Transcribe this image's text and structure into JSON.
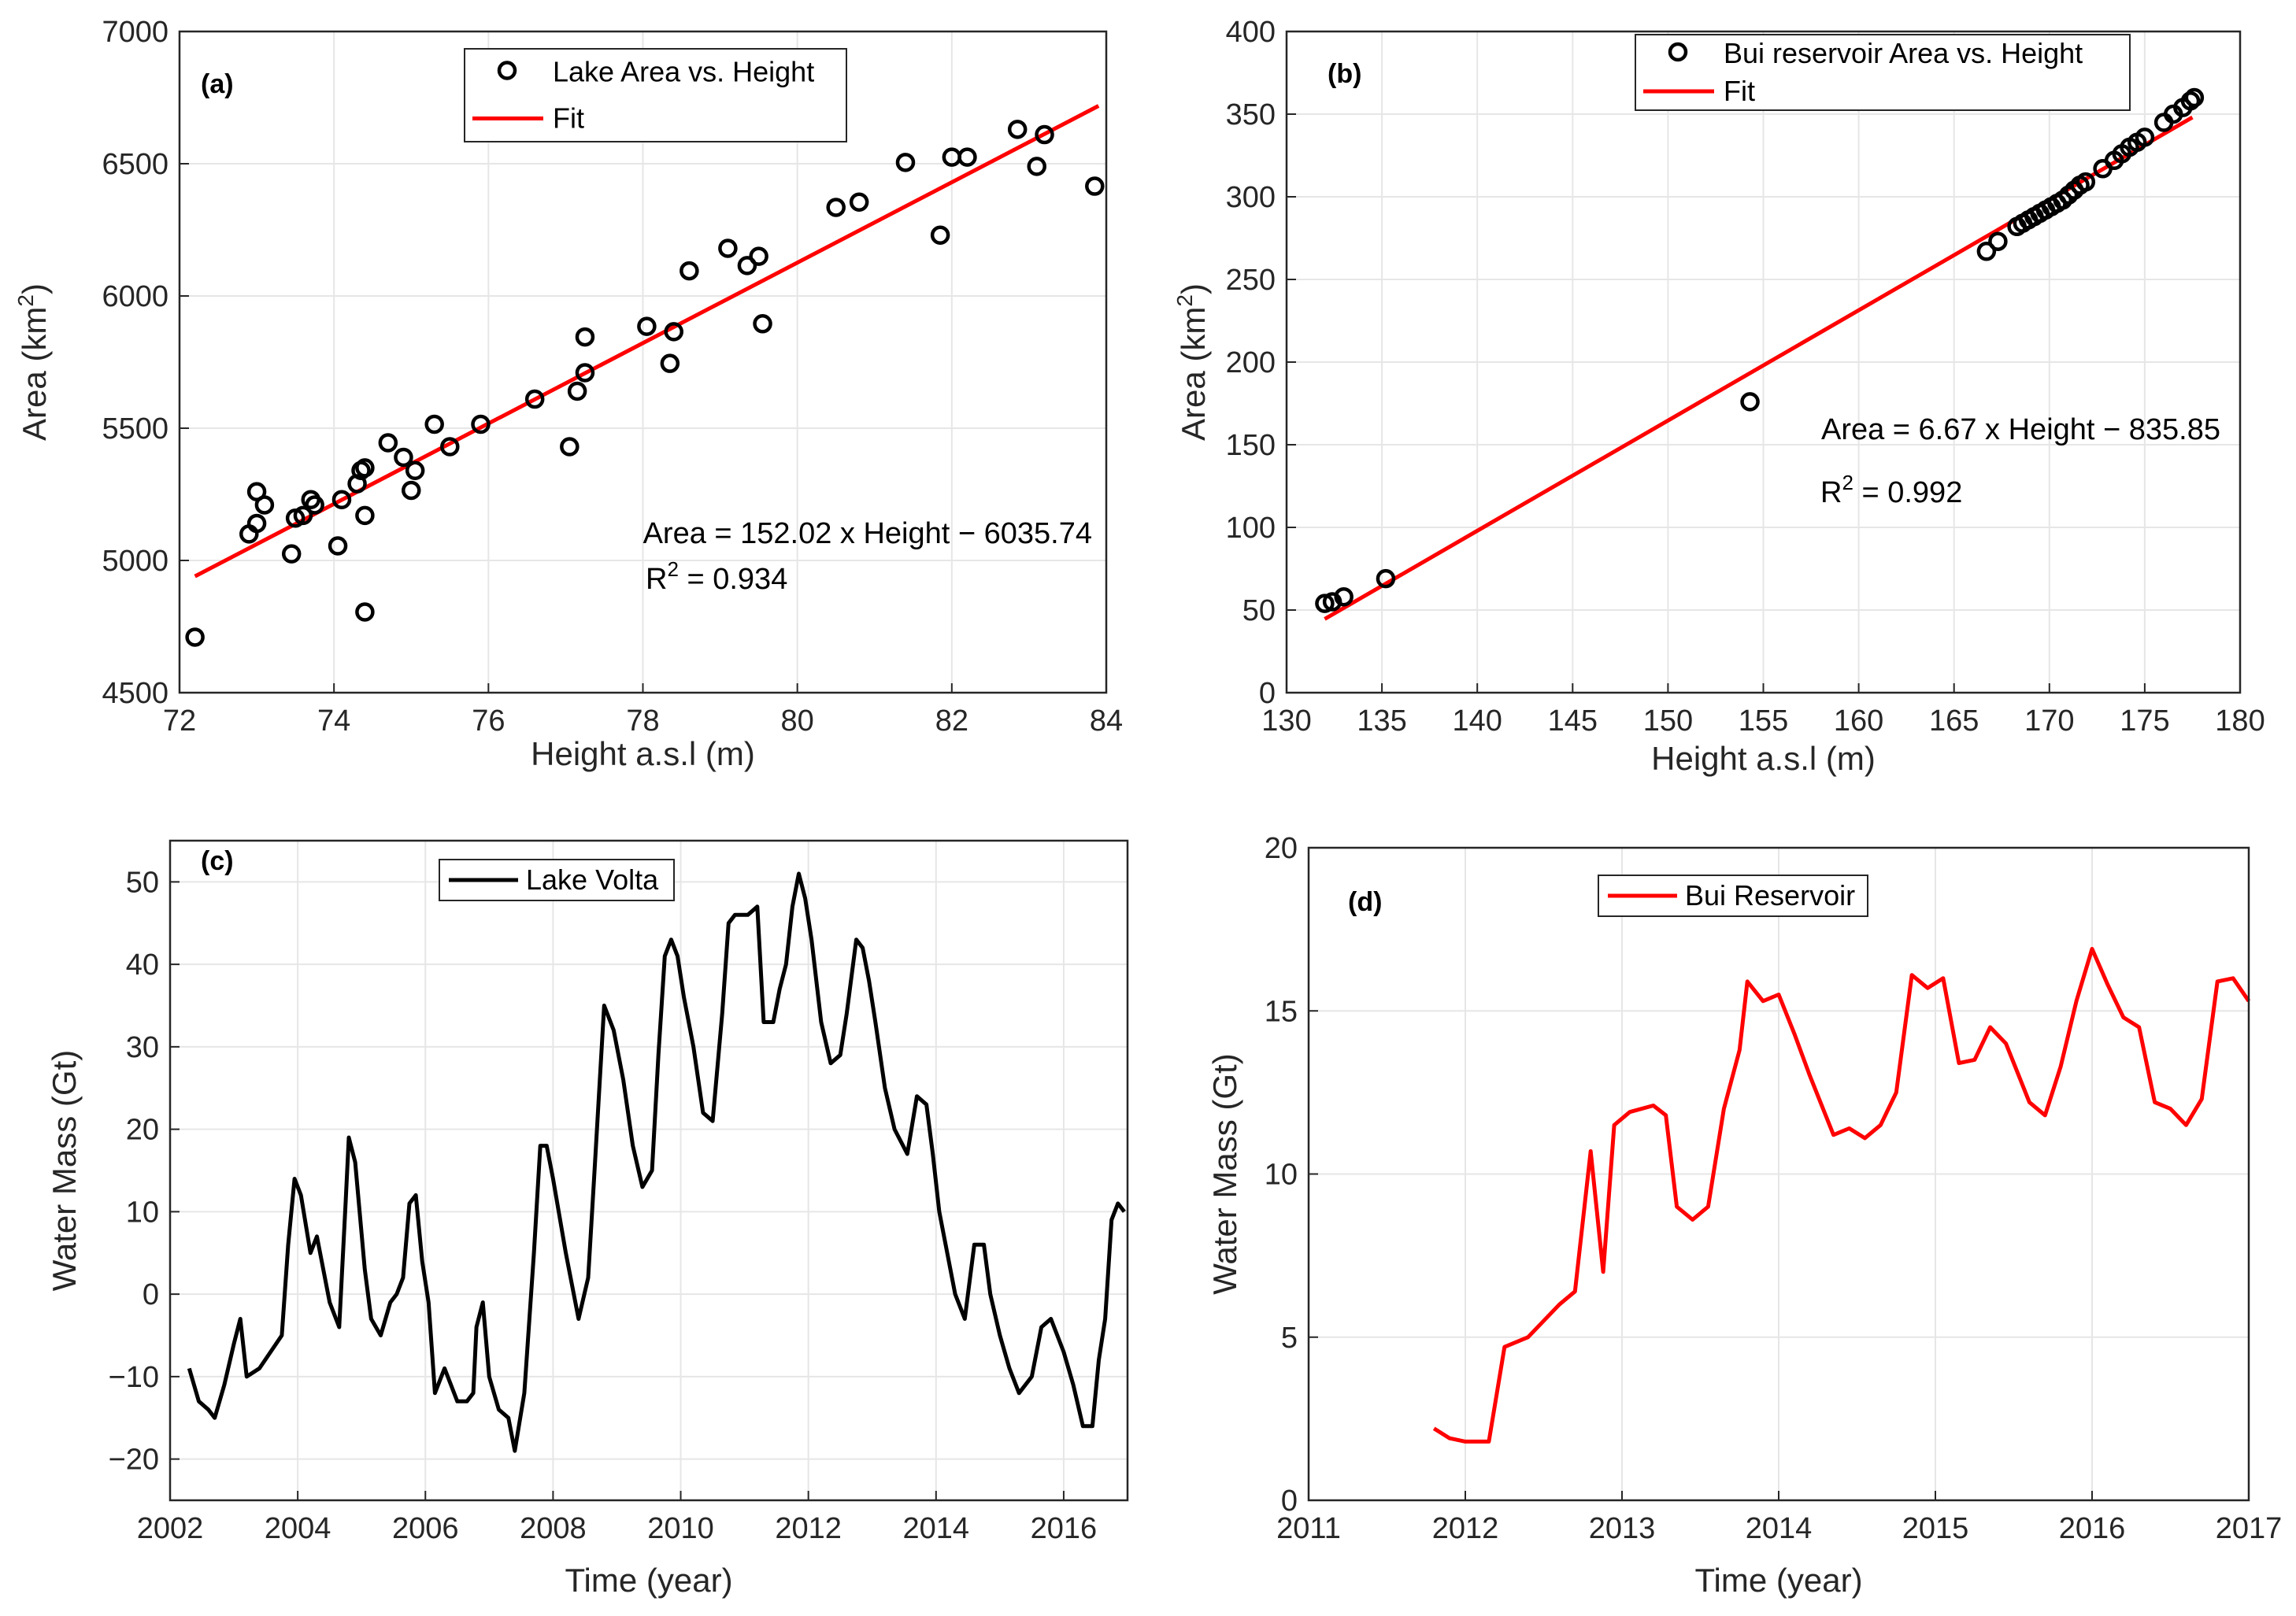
{
  "chart_data": [
    {
      "panel": "a",
      "label": "(a)",
      "type": "scatter",
      "xlabel": "Height a.s.l (m)",
      "ylabel": "Area (km",
      "ylabel_sup": "2",
      "ylabel_end": ")",
      "xlim": [
        72,
        84
      ],
      "ylim": [
        4500,
        7000
      ],
      "xticks": [
        72,
        74,
        76,
        78,
        80,
        82,
        84
      ],
      "yticks": [
        4500,
        5000,
        5500,
        6000,
        6500,
        7000
      ],
      "legend": [
        "Lake Area vs. Height",
        "Fit"
      ],
      "equation": "Area = 152.02 x Height − 6035.74",
      "r2_prefix": "R",
      "r2_sup": "2",
      "r2_value": " = 0.934",
      "fit": {
        "slope": 152.02,
        "intercept": -6035.74,
        "x_range": [
          72.2,
          83.9
        ]
      },
      "series": [
        {
          "name": "Lake Area vs. Height",
          "marker": "circle",
          "x": [
            72.2,
            72.9,
            73.0,
            73.0,
            73.1,
            73.45,
            73.5,
            73.6,
            73.7,
            73.75,
            74.05,
            74.1,
            74.3,
            74.35,
            74.4,
            74.4,
            74.4,
            74.7,
            74.9,
            75.0,
            75.05,
            75.3,
            75.5,
            75.9,
            76.6,
            77.05,
            77.15,
            77.25,
            77.25,
            78.05,
            78.35,
            78.4,
            78.6,
            79.1,
            79.35,
            79.5,
            79.55,
            80.5,
            80.8,
            81.4,
            81.85,
            82.0,
            82.2,
            82.85,
            83.1,
            83.2,
            83.85
          ],
          "y": [
            4710,
            5100,
            5260,
            5140,
            5210,
            5025,
            5160,
            5170,
            5230,
            5210,
            5055,
            5230,
            5290,
            5340,
            5350,
            5170,
            4805,
            5445,
            5390,
            5265,
            5340,
            5515,
            5430,
            5515,
            5610,
            5430,
            5640,
            5710,
            5845,
            5885,
            5745,
            5865,
            6095,
            6180,
            6115,
            6150,
            5895,
            6335,
            6355,
            6505,
            6230,
            6525,
            6525,
            6630,
            6490,
            6610,
            6415
          ]
        }
      ]
    },
    {
      "panel": "b",
      "label": "(b)",
      "type": "scatter",
      "xlabel": "Height a.s.l (m)",
      "ylabel": "Area (km",
      "ylabel_sup": "2",
      "ylabel_end": ")",
      "xlim": [
        130,
        180
      ],
      "ylim": [
        0,
        400
      ],
      "xticks": [
        130,
        135,
        140,
        145,
        150,
        155,
        160,
        165,
        170,
        175,
        180
      ],
      "yticks": [
        0,
        50,
        100,
        150,
        200,
        250,
        300,
        350,
        400
      ],
      "legend": [
        "Bui reservoir Area vs. Height",
        "Fit"
      ],
      "equation": "Area = 6.67 x Height − 835.85",
      "r2_prefix": "R",
      "r2_sup": "2",
      "r2_value": " = 0.992",
      "fit": {
        "slope": 6.67,
        "intercept": -835.85,
        "x_range": [
          132.0,
          177.5
        ]
      },
      "series": [
        {
          "name": "Bui reservoir Area vs. Height",
          "marker": "circle",
          "x": [
            132.0,
            132.4,
            133.0,
            135.2,
            154.3,
            166.7,
            167.3,
            168.3,
            168.6,
            168.9,
            169.2,
            169.5,
            169.8,
            170.1,
            170.4,
            170.7,
            171.0,
            171.3,
            171.6,
            171.9,
            172.8,
            173.4,
            173.8,
            174.2,
            174.6,
            175.0,
            176.0,
            176.5,
            177.0,
            177.4,
            177.6
          ],
          "y": [
            54,
            55,
            58,
            69,
            176,
            267,
            273,
            282,
            284,
            286,
            288,
            290,
            292,
            294,
            296,
            298,
            301,
            304,
            307,
            309,
            317,
            322,
            326,
            330,
            333,
            336,
            345,
            350,
            354,
            358,
            360
          ]
        }
      ]
    },
    {
      "panel": "c",
      "label": "(c)",
      "type": "line",
      "xlabel": "Time (year)",
      "ylabel": "Water Mass (Gt)",
      "xlim": [
        2002,
        2017
      ],
      "ylim": [
        -25,
        55
      ],
      "xticks": [
        2002,
        2004,
        2006,
        2008,
        2010,
        2012,
        2014,
        2016
      ],
      "yticks": [
        -20,
        -10,
        0,
        10,
        20,
        30,
        40,
        50
      ],
      "legend": [
        "Lake Volta"
      ],
      "series": [
        {
          "name": "Lake Volta",
          "color": "#000000",
          "x": [
            2002.3,
            2002.45,
            2002.6,
            2002.7,
            2002.85,
            2003.0,
            2003.1,
            2003.2,
            2003.4,
            2003.75,
            2003.85,
            2003.95,
            2004.05,
            2004.2,
            2004.3,
            2004.5,
            2004.65,
            2004.75,
            2004.8,
            2004.9,
            2005.05,
            2005.15,
            2005.3,
            2005.45,
            2005.55,
            2005.65,
            2005.75,
            2005.85,
            2005.95,
            2006.05,
            2006.15,
            2006.25,
            2006.3,
            2006.5,
            2006.65,
            2006.75,
            2006.8,
            2006.9,
            2007.0,
            2007.15,
            2007.3,
            2007.4,
            2007.55,
            2007.7,
            2007.8,
            2007.9,
            2008.0,
            2008.2,
            2008.4,
            2008.55,
            2008.65,
            2008.8,
            2008.95,
            2009.1,
            2009.25,
            2009.4,
            2009.55,
            2009.65,
            2009.75,
            2009.85,
            2009.95,
            2010.05,
            2010.2,
            2010.35,
            2010.5,
            2010.65,
            2010.75,
            2010.85,
            2011.05,
            2011.2,
            2011.3,
            2011.45,
            2011.55,
            2011.65,
            2011.75,
            2011.85,
            2011.95,
            2012.05,
            2012.2,
            2012.35,
            2012.5,
            2012.6,
            2012.75,
            2012.85,
            2012.95,
            2013.05,
            2013.2,
            2013.35,
            2013.55,
            2013.7,
            2013.85,
            2013.95,
            2014.05,
            2014.15,
            2014.3,
            2014.45,
            2014.6,
            2014.75,
            2014.85,
            2015.0,
            2015.15,
            2015.3,
            2015.5,
            2015.65,
            2015.8,
            2015.9,
            2016.0,
            2016.15,
            2016.3,
            2016.45,
            2016.55,
            2016.65,
            2016.75,
            2016.85,
            2016.95
          ],
          "y": [
            -9,
            -13,
            -14,
            -15,
            -11,
            -6,
            -3,
            -10,
            -9,
            -5,
            6,
            14,
            12,
            5,
            7,
            -1,
            -4,
            11,
            19,
            16,
            3,
            -3,
            -5,
            -1,
            0,
            2,
            11,
            12,
            4,
            -1,
            -12,
            -10,
            -9,
            -13,
            -13,
            -12,
            -4,
            -1,
            -10,
            -14,
            -15,
            -19,
            -12,
            5,
            18,
            18,
            14,
            5,
            -3,
            2,
            15,
            35,
            32,
            26,
            18,
            13,
            15,
            29,
            41,
            43,
            41,
            36,
            30,
            22,
            21,
            34,
            45,
            46,
            46,
            47,
            33,
            33,
            37,
            40,
            47,
            51,
            48,
            43,
            33,
            28,
            29,
            34,
            43,
            42,
            38,
            33,
            25,
            20,
            17,
            24,
            23,
            17,
            10,
            6,
            0,
            -3,
            6,
            6,
            0,
            -5,
            -9,
            -12,
            -10,
            -4,
            -3,
            -5,
            -7,
            -11,
            -16,
            -16,
            -8,
            -3,
            9,
            11,
            10
          ]
        }
      ]
    },
    {
      "panel": "d",
      "label": "(d)",
      "type": "line",
      "xlabel": "Time (year)",
      "ylabel": "Water Mass (Gt)",
      "xlim": [
        2011,
        2017
      ],
      "ylim": [
        0,
        20
      ],
      "xticks": [
        2011,
        2012,
        2013,
        2014,
        2015,
        2016,
        2017
      ],
      "yticks": [
        0,
        5,
        10,
        15,
        20
      ],
      "legend": [
        "Bui Reservoir"
      ],
      "series": [
        {
          "name": "Bui Reservoir",
          "color": "#ff0000",
          "x": [
            2011.8,
            2011.9,
            2012.0,
            2012.15,
            2012.25,
            2012.4,
            2012.6,
            2012.7,
            2012.8,
            2012.88,
            2012.95,
            2013.05,
            2013.2,
            2013.28,
            2013.35,
            2013.45,
            2013.55,
            2013.65,
            2013.75,
            2013.8,
            2013.9,
            2014.0,
            2014.1,
            2014.2,
            2014.35,
            2014.45,
            2014.55,
            2014.65,
            2014.75,
            2014.85,
            2014.95,
            2015.05,
            2015.15,
            2015.25,
            2015.35,
            2015.45,
            2015.6,
            2015.7,
            2015.8,
            2015.9,
            2016.0,
            2016.1,
            2016.2,
            2016.3,
            2016.4,
            2016.5,
            2016.6,
            2016.7,
            2016.8,
            2016.9,
            2017.0
          ],
          "y": [
            2.2,
            1.9,
            1.8,
            1.8,
            4.7,
            5.0,
            6.0,
            6.4,
            10.7,
            7.0,
            11.5,
            11.9,
            12.1,
            11.8,
            9.0,
            8.6,
            9.0,
            12.0,
            13.8,
            15.9,
            15.3,
            15.5,
            14.3,
            13.0,
            11.2,
            11.4,
            11.1,
            11.5,
            12.5,
            16.1,
            15.7,
            16.0,
            13.4,
            13.5,
            14.5,
            14.0,
            12.2,
            11.8,
            13.3,
            15.3,
            16.9,
            15.8,
            14.8,
            14.5,
            12.2,
            12.0,
            11.5,
            12.3,
            15.9,
            16.0,
            15.3
          ]
        }
      ]
    }
  ]
}
